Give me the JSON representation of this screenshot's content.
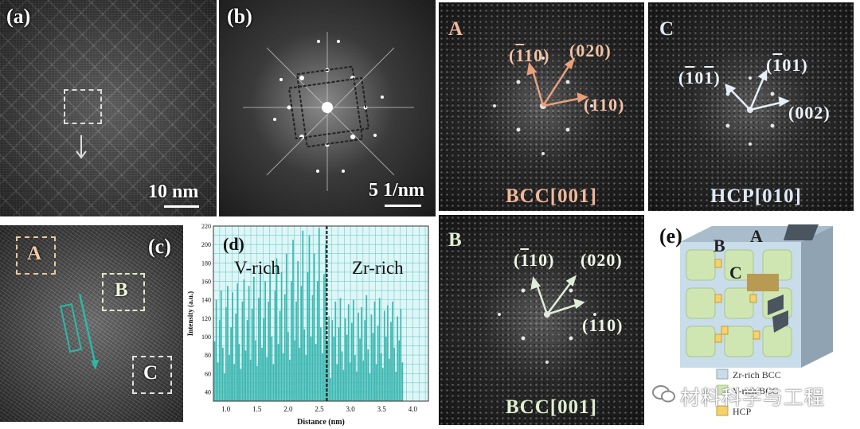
{
  "panels": {
    "a": {
      "label": "(a)",
      "scale": "10 nm"
    },
    "b": {
      "label": "(b)",
      "scale": "5 1/nm"
    },
    "c": {
      "label": "(c)",
      "regions": [
        "A",
        "B",
        "C"
      ]
    },
    "d": {
      "label": "(d)",
      "left_text": "V-rich",
      "right_text": "Zr-rich"
    },
    "fft_A": {
      "letter": "A",
      "title": "BCC[001]",
      "indices": [
        {
          "bar": "1",
          "rest": "10"
        },
        "(020)",
        "(110)"
      ]
    },
    "fft_C": {
      "letter": "C",
      "title": "HCP[010]",
      "indices": [
        {
          "bar": "1",
          "rest": "0",
          "bar2": "1"
        },
        {
          "bar": "1",
          "rest": "01"
        },
        "(002)"
      ]
    },
    "fft_B": {
      "letter": "B",
      "title": "BCC[001]",
      "indices": [
        {
          "bar": "1",
          "rest": "10"
        },
        "(020)",
        "(110)"
      ]
    },
    "e": {
      "label": "(e)",
      "letters": [
        "A",
        "B",
        "C"
      ],
      "legend": [
        "Zr-rich BCC",
        "V-rich BCC",
        "HCP"
      ]
    }
  },
  "watermark": "材料科学与工程",
  "chart_data": {
    "type": "bar",
    "title": "",
    "xlabel": "Distance (nm)",
    "ylabel": "Intensity (a.u.)",
    "xlim": [
      0.8,
      4.25
    ],
    "ylim": [
      30,
      220
    ],
    "xticks": [
      1.0,
      1.5,
      2.0,
      2.5,
      3.0,
      3.5,
      4.0
    ],
    "xtick_labels": [
      "1.0",
      "1.5",
      "2.0",
      "2.5",
      "3.0",
      "3.5",
      "4.0"
    ],
    "yticks": [
      40,
      60,
      80,
      100,
      120,
      140,
      160,
      180,
      200,
      220
    ],
    "divider_x": 2.62,
    "x_start": 0.82,
    "x_step": 0.0262,
    "values": [
      95,
      140,
      72,
      118,
      150,
      88,
      60,
      132,
      155,
      80,
      110,
      148,
      70,
      125,
      158,
      92,
      65,
      138,
      162,
      85,
      118,
      155,
      75,
      130,
      165,
      96,
      68,
      142,
      170,
      88,
      120,
      160,
      78,
      138,
      175,
      100,
      70,
      150,
      185,
      92,
      128,
      170,
      82,
      146,
      190,
      105,
      75,
      160,
      205,
      96,
      138,
      182,
      88,
      155,
      215,
      108,
      80,
      170,
      210,
      100,
      145,
      190,
      92,
      160,
      218,
      110,
      82,
      168,
      200,
      95,
      122,
      55,
      118,
      100,
      138,
      70,
      110,
      142,
      84,
      64,
      120,
      102,
      135,
      72,
      115,
      140,
      80,
      62,
      126,
      98,
      132,
      74,
      118,
      145,
      86,
      60,
      124,
      104,
      138,
      70,
      112,
      142,
      82,
      66,
      128,
      100,
      134,
      76,
      116,
      138,
      88,
      62,
      122,
      96,
      130,
      72
    ]
  }
}
